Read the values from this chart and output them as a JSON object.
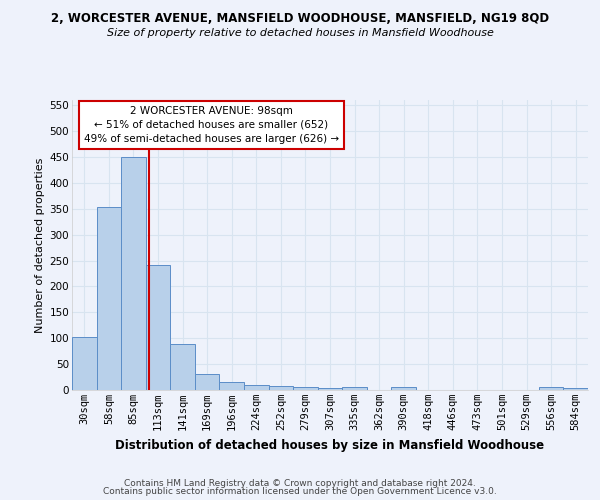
{
  "title": "2, WORCESTER AVENUE, MANSFIELD WOODHOUSE, MANSFIELD, NG19 8QD",
  "subtitle": "Size of property relative to detached houses in Mansfield Woodhouse",
  "xlabel": "Distribution of detached houses by size in Mansfield Woodhouse",
  "ylabel": "Number of detached properties",
  "categories": [
    "30sqm",
    "58sqm",
    "85sqm",
    "113sqm",
    "141sqm",
    "169sqm",
    "196sqm",
    "224sqm",
    "252sqm",
    "279sqm",
    "307sqm",
    "335sqm",
    "362sqm",
    "390sqm",
    "418sqm",
    "446sqm",
    "473sqm",
    "501sqm",
    "529sqm",
    "556sqm",
    "584sqm"
  ],
  "values": [
    103,
    353,
    450,
    242,
    88,
    30,
    15,
    10,
    8,
    5,
    3,
    5,
    0,
    6,
    0,
    0,
    0,
    0,
    0,
    5,
    4
  ],
  "bar_color": "#b8d0ea",
  "bar_edge_color": "#5b8dc8",
  "vline_x": 2.65,
  "vline_color": "#cc0000",
  "annotation_text": "2 WORCESTER AVENUE: 98sqm\n← 51% of detached houses are smaller (652)\n49% of semi-detached houses are larger (626) →",
  "annotation_box_color": "#ffffff",
  "annotation_box_edge": "#cc0000",
  "ylim": [
    0,
    560
  ],
  "yticks": [
    0,
    50,
    100,
    150,
    200,
    250,
    300,
    350,
    400,
    450,
    500,
    550
  ],
  "footer1": "Contains HM Land Registry data © Crown copyright and database right 2024.",
  "footer2": "Contains public sector information licensed under the Open Government Licence v3.0.",
  "bg_color": "#eef2fb",
  "grid_color": "#d8e4f0",
  "title_fontsize": 8.5,
  "subtitle_fontsize": 8.0,
  "xlabel_fontsize": 8.5,
  "ylabel_fontsize": 8.0,
  "tick_fontsize": 7.5,
  "annot_fontsize": 7.5,
  "footer_fontsize": 6.5
}
